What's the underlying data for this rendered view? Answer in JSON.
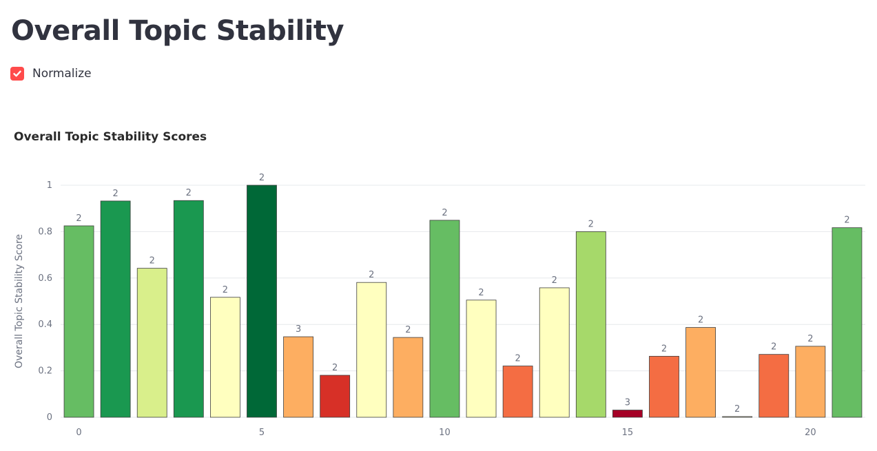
{
  "page": {
    "title": "Overall Topic Stability"
  },
  "controls": {
    "normalize_label": "Normalize",
    "normalize_checked": true,
    "accent_color": "#ff4b4b"
  },
  "chart_data": {
    "type": "bar",
    "title": "Overall Topic Stability Scores",
    "xlabel": "",
    "ylabel": "Overall Topic Stability Score",
    "x": [
      0,
      1,
      2,
      3,
      4,
      5,
      6,
      7,
      8,
      9,
      10,
      11,
      12,
      13,
      14,
      15,
      16,
      17,
      18,
      19,
      20,
      21
    ],
    "values": [
      0.825,
      0.932,
      0.642,
      0.934,
      0.517,
      1.0,
      0.347,
      0.181,
      0.581,
      0.344,
      0.849,
      0.505,
      0.221,
      0.558,
      0.8,
      0.031,
      0.263,
      0.387,
      0.003,
      0.271,
      0.306,
      0.817
    ],
    "labels": [
      "2",
      "2",
      "2",
      "2",
      "2",
      "2",
      "3",
      "2",
      "2",
      "2",
      "2",
      "2",
      "2",
      "2",
      "2",
      "3",
      "2",
      "2",
      "2",
      "2",
      "2",
      "2"
    ],
    "colors": [
      "#66bd63",
      "#1a9850",
      "#d9ef8b",
      "#1a9850",
      "#ffffbf",
      "#006837",
      "#fdae61",
      "#d73027",
      "#ffffbf",
      "#fdae61",
      "#66bd63",
      "#ffffbf",
      "#f46d43",
      "#ffffbf",
      "#a6d96a",
      "#a50026",
      "#f46d43",
      "#fdae61",
      "#ffffbf",
      "#f46d43",
      "#fdae61",
      "#66bd63"
    ],
    "ylim": [
      0,
      1
    ],
    "yticks": [
      0,
      0.2,
      0.4,
      0.6,
      0.8,
      1
    ],
    "ytick_labels": [
      "0",
      "0.2",
      "0.4",
      "0.6",
      "0.8",
      "1"
    ],
    "xticks": [
      0,
      5,
      10,
      15,
      20
    ],
    "xtick_labels": [
      "0",
      "5",
      "10",
      "15",
      "20"
    ],
    "grid": true,
    "legend": "none"
  }
}
